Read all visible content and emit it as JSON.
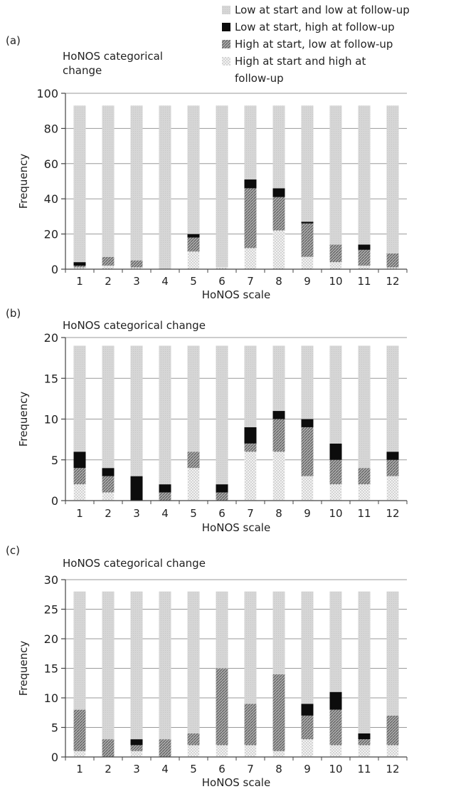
{
  "legend": {
    "items": [
      {
        "label": "Low at start and low at follow-up",
        "key": "low_low"
      },
      {
        "label": "Low at start, high at follow-up",
        "key": "low_high"
      },
      {
        "label": "High at start, low at follow-up",
        "key": "high_low"
      },
      {
        "label": "High at start and high at follow-up",
        "key": "high_high"
      }
    ]
  },
  "colors": {
    "low_low": "#d4d4d4",
    "low_high": "#0c0c0c",
    "high_low": "#8f8f8f",
    "high_high": "#f0f0f0",
    "grid": "#9a9a9a",
    "axis": "#444444"
  },
  "chart_data": [
    {
      "panel_label": "(a)",
      "type": "bar",
      "stacked": true,
      "title": "HoNOS categorical change",
      "xlabel": "HoNOS scale",
      "ylabel": "Frequency",
      "ylim": [
        0,
        100
      ],
      "yticks": [
        0,
        20,
        40,
        60,
        80,
        100
      ],
      "grid": true,
      "categories": [
        "1",
        "2",
        "3",
        "4",
        "5",
        "6",
        "7",
        "8",
        "9",
        "10",
        "11",
        "12"
      ],
      "series": [
        {
          "name": "High at start and high at follow-up",
          "key": "high_high",
          "values": [
            1,
            2,
            1,
            0,
            10,
            1,
            12,
            22,
            7,
            4,
            2,
            1
          ]
        },
        {
          "name": "High at start, low at follow-up",
          "key": "high_low",
          "values": [
            1,
            5,
            4,
            0,
            8,
            0,
            34,
            19,
            19,
            10,
            9,
            8
          ]
        },
        {
          "name": "Low at start, high at follow-up",
          "key": "low_high",
          "values": [
            2,
            0,
            0,
            0,
            2,
            0,
            5,
            5,
            1,
            0,
            3,
            0
          ]
        },
        {
          "name": "Low at start and low at follow-up",
          "key": "low_low",
          "values": [
            89,
            86,
            88,
            93,
            73,
            92,
            42,
            47,
            66,
            79,
            79,
            84
          ]
        }
      ]
    },
    {
      "panel_label": "(b)",
      "type": "bar",
      "stacked": true,
      "title": "HoNOS categorical change",
      "xlabel": "HoNOS scale",
      "ylabel": "Frequency",
      "ylim": [
        0,
        20
      ],
      "yticks": [
        0,
        5,
        10,
        15,
        20
      ],
      "grid": true,
      "categories": [
        "1",
        "2",
        "3",
        "4",
        "5",
        "6",
        "7",
        "8",
        "9",
        "10",
        "11",
        "12"
      ],
      "series": [
        {
          "name": "High at start and high at follow-up",
          "key": "high_high",
          "values": [
            2,
            1,
            0,
            0,
            4,
            0,
            6,
            6,
            3,
            2,
            2,
            3
          ]
        },
        {
          "name": "High at start, low at follow-up",
          "key": "high_low",
          "values": [
            2,
            2,
            0,
            1,
            2,
            1,
            1,
            4,
            6,
            3,
            2,
            2
          ]
        },
        {
          "name": "Low at start, high at follow-up",
          "key": "low_high",
          "values": [
            2,
            1,
            3,
            1,
            0,
            1,
            2,
            1,
            1,
            2,
            0,
            1
          ]
        },
        {
          "name": "Low at start and low at follow-up",
          "key": "low_low",
          "values": [
            13,
            15,
            16,
            17,
            13,
            17,
            10,
            8,
            9,
            12,
            15,
            13
          ]
        }
      ]
    },
    {
      "panel_label": "(c)",
      "type": "bar",
      "stacked": true,
      "title": "HoNOS categorical change",
      "xlabel": "HoNOS scale",
      "ylabel": "Frequency",
      "ylim": [
        0,
        30
      ],
      "yticks": [
        0,
        5,
        10,
        15,
        20,
        25,
        30
      ],
      "grid": true,
      "categories": [
        "1",
        "2",
        "3",
        "4",
        "5",
        "6",
        "7",
        "8",
        "9",
        "10",
        "11",
        "12"
      ],
      "series": [
        {
          "name": "High at start and high at follow-up",
          "key": "high_high",
          "values": [
            1,
            0,
            1,
            0,
            2,
            2,
            2,
            1,
            3,
            2,
            2,
            2
          ]
        },
        {
          "name": "High at start, low at follow-up",
          "key": "high_low",
          "values": [
            7,
            3,
            1,
            3,
            2,
            13,
            7,
            13,
            4,
            6,
            1,
            5
          ]
        },
        {
          "name": "Low at start, high at follow-up",
          "key": "low_high",
          "values": [
            0,
            0,
            1,
            0,
            0,
            0,
            0,
            0,
            2,
            3,
            1,
            0
          ]
        },
        {
          "name": "Low at start and low at follow-up",
          "key": "low_low",
          "values": [
            20,
            25,
            25,
            25,
            24,
            13,
            19,
            14,
            19,
            17,
            24,
            21
          ]
        }
      ]
    }
  ]
}
